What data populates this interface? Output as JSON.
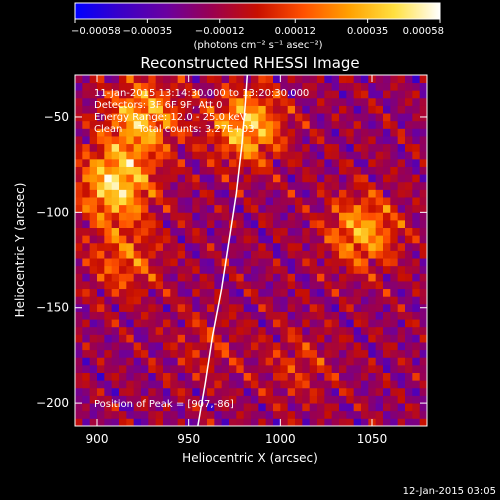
{
  "chart_data": {
    "type": "heatmap",
    "title": "Reconstructed RHESSI Image",
    "xlabel": "Heliocentric X (arcsec)",
    "ylabel": "Heliocentric Y (arcsec)",
    "xlim": [
      888,
      1080
    ],
    "ylim": [
      -212,
      -28
    ],
    "x_ticks": [
      900,
      950,
      1000,
      1050
    ],
    "x_tick_labels": [
      "900",
      "950",
      "1000",
      "1050"
    ],
    "y_ticks": [
      -50,
      -100,
      -150,
      -200
    ],
    "y_tick_labels": [
      "−50",
      "−100",
      "−150",
      "−200"
    ],
    "colorbar": {
      "min": -0.00058,
      "max": 0.00058,
      "ticks": [
        -0.00058,
        -0.00035,
        -0.00012,
        0.00012,
        0.00035,
        0.00058
      ],
      "tick_labels": [
        "−0.00058",
        "−0.00035",
        "−0.00012",
        "0.00012",
        "0.00035",
        "0.00058"
      ],
      "unit_label": "(photons cm⁻² s⁻¹ asec⁻²)",
      "colors": [
        "#0000ff",
        "#3a00c8",
        "#6a00a0",
        "#9a0050",
        "#c81000",
        "#ff5000",
        "#ffa000",
        "#ffe040",
        "#ffffff"
      ]
    },
    "info_lines": [
      "11-Jan-2015 13:14:30.000 to 13:20:30.000",
      "Detectors: 3F 6F 9F, Att 0",
      "Energy Range: 12.0 - 25.0 keV",
      "Clean     Total counts: 3.27E+03"
    ],
    "peak_label": "Position of Peak = [907,-86]",
    "peak_position": [
      907,
      -86
    ],
    "sources": [
      {
        "x": 910,
        "y": -85,
        "intensity": 0.00058
      },
      {
        "x": 925,
        "y": -50,
        "intensity": 0.00048
      },
      {
        "x": 915,
        "y": -125,
        "intensity": 0.0003
      },
      {
        "x": 982,
        "y": -55,
        "intensity": 0.00052
      },
      {
        "x": 1045,
        "y": -110,
        "intensity": 0.00045
      },
      {
        "x": 1010,
        "y": -180,
        "intensity": 0.00018
      },
      {
        "x": 960,
        "y": -170,
        "intensity": 0.00015
      }
    ],
    "limb_curve": [
      {
        "x": 955,
        "y": -212
      },
      {
        "x": 959,
        "y": -190
      },
      {
        "x": 963,
        "y": -165
      },
      {
        "x": 968,
        "y": -140
      },
      {
        "x": 972,
        "y": -115
      },
      {
        "x": 976,
        "y": -90
      },
      {
        "x": 979,
        "y": -65
      },
      {
        "x": 981,
        "y": -42
      },
      {
        "x": 982,
        "y": -28
      }
    ]
  },
  "footer": {
    "date_stamp": "12-Jan-2015 03:05"
  }
}
